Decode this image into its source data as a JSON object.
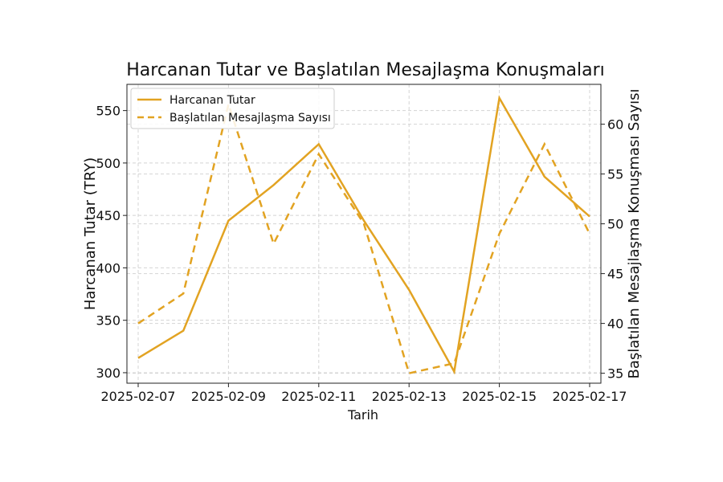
{
  "chart_data": {
    "type": "line",
    "title": "Harcanan Tutar ve Başlatılan Mesajlaşma Konuşmaları",
    "xlabel": "Tarih",
    "ylabel_left": "Harcanan Tutar (TRY)",
    "ylabel_right": "Başlatılan Mesajlaşma Konuşması Sayısı",
    "x": [
      "2025-02-07",
      "2025-02-08",
      "2025-02-09",
      "2025-02-10",
      "2025-02-11",
      "2025-02-12",
      "2025-02-13",
      "2025-02-14",
      "2025-02-15",
      "2025-02-16",
      "2025-02-17"
    ],
    "x_tick_labels": [
      "2025-02-07",
      "2025-02-09",
      "2025-02-11",
      "2025-02-13",
      "2025-02-15",
      "2025-02-17"
    ],
    "left_ticks": [
      300,
      350,
      400,
      450,
      500,
      550
    ],
    "right_ticks": [
      35,
      40,
      45,
      50,
      55,
      60
    ],
    "ylim_left": [
      290,
      575
    ],
    "ylim_right": [
      34,
      64
    ],
    "grid": true,
    "legend_position": "top-left",
    "color": "#e2a322",
    "series": [
      {
        "name": "Harcanan Tutar",
        "axis": "left",
        "style": "solid",
        "values": [
          314,
          340,
          445,
          479,
          518,
          445,
          379,
          301,
          562,
          487,
          449
        ]
      },
      {
        "name": "Başlatılan Mesajlaşma Sayısı",
        "axis": "right",
        "style": "dashed",
        "values": [
          40,
          43,
          62,
          48,
          57,
          50,
          35,
          36,
          49,
          58,
          49
        ]
      }
    ]
  }
}
